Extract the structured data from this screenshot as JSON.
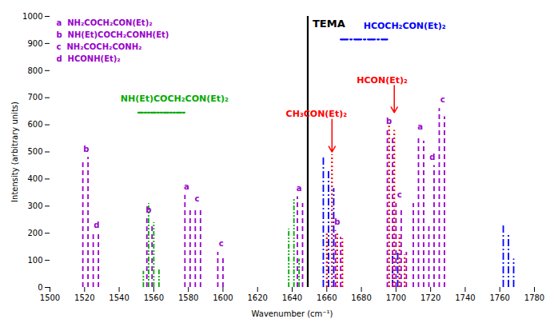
{
  "chart_data": {
    "type": "stick",
    "xlabel": "Wavenumber (cm⁻¹)",
    "ylabel": "Intensity (arbitrary units)",
    "xlim": [
      1500,
      1780
    ],
    "ylim": [
      0,
      1000
    ],
    "xticks": [
      1500,
      1520,
      1540,
      1560,
      1580,
      1600,
      1620,
      1640,
      1660,
      1680,
      1700,
      1720,
      1740,
      1760,
      1780
    ],
    "yticks": [
      0,
      100,
      200,
      300,
      400,
      500,
      600,
      700,
      800,
      900,
      1000
    ],
    "grid": false,
    "reference_line": {
      "x": 1649,
      "text": "TEMA",
      "color": "#000000",
      "line_style": "solid"
    },
    "series": [
      {
        "name": "NH(Et)COCH₂CON(Et)₂",
        "color": "#00AA00",
        "line_style": "dashdotdot",
        "x": [
          1554,
          1557,
          1560,
          1563,
          1638,
          1641,
          1644
        ],
        "values": [
          60,
          310,
          240,
          65,
          215,
          330,
          105
        ],
        "name_x": 1572,
        "name_y": 685,
        "key_x": [
          1551,
          1578
        ],
        "key_y": 645
      },
      {
        "name": "HCOCH₂CON(Et)₂",
        "color": "#0000FF",
        "line_style": "dashdot",
        "x": [
          1658,
          1661,
          1664,
          1698,
          1701,
          1762,
          1765,
          1768
        ],
        "values": [
          480,
          430,
          365,
          115,
          135,
          230,
          195,
          105
        ],
        "name_x": 1705,
        "name_y": 955,
        "key_x": [
          1668,
          1695
        ],
        "key_y": 915
      },
      {
        "color": "#FF0000",
        "line_style": "dotted",
        "x": [
          1660,
          1663,
          1666,
          1669,
          1696,
          1699,
          1702,
          1705
        ],
        "values": [
          200,
          490,
          200,
          180,
          595,
          580,
          195,
          120
        ],
        "annotations": [
          {
            "text": "CH₃CON(Et)₂",
            "x": 1654,
            "y": 630,
            "arrow_x": [
              1663,
              1663
            ],
            "arrow_y": [
              620,
              500
            ]
          },
          {
            "text": "HCON(Et)₂",
            "x": 1692,
            "y": 755,
            "arrow_x": [
              1699,
              1699
            ],
            "arrow_y": [
              745,
              645
            ]
          }
        ]
      },
      {
        "color": "#9900CC",
        "line_style": "dashed",
        "x": [
          1519,
          1522,
          1525,
          1528,
          1556,
          1559,
          1578,
          1581,
          1584,
          1587,
          1597,
          1600,
          1643,
          1646,
          1665,
          1668,
          1695,
          1698,
          1700,
          1703,
          1706,
          1710,
          1713,
          1716,
          1719,
          1722,
          1725,
          1728
        ],
        "values": [
          460,
          480,
          200,
          195,
          255,
          235,
          340,
          295,
          295,
          285,
          130,
          115,
          335,
          310,
          210,
          185,
          580,
          560,
          310,
          290,
          130,
          310,
          560,
          540,
          230,
          450,
          660,
          630
        ],
        "legend_entries": [
          "a  NH₂COCH₂CON(Et)₂",
          "b  NH(Et)COCH₂CONH(Et)",
          "c  NH₂COCH₂CONH₂",
          "d  HCONH(Et)₂"
        ],
        "letters": [
          {
            "x": 1521,
            "y": 492,
            "text": "b"
          },
          {
            "x": 1527,
            "y": 210,
            "text": "d"
          },
          {
            "x": 1557,
            "y": 268,
            "text": "b"
          },
          {
            "x": 1579,
            "y": 353,
            "text": "a"
          },
          {
            "x": 1585,
            "y": 308,
            "text": "c"
          },
          {
            "x": 1599,
            "y": 143,
            "text": "c"
          },
          {
            "x": 1644,
            "y": 348,
            "text": "a"
          },
          {
            "x": 1666,
            "y": 223,
            "text": "b"
          },
          {
            "x": 1696,
            "y": 594,
            "text": "b"
          },
          {
            "x": 1702,
            "y": 323,
            "text": "c"
          },
          {
            "x": 1714,
            "y": 574,
            "text": "a"
          },
          {
            "x": 1721,
            "y": 463,
            "text": "d"
          },
          {
            "x": 1727,
            "y": 673,
            "text": "c"
          }
        ]
      }
    ]
  }
}
